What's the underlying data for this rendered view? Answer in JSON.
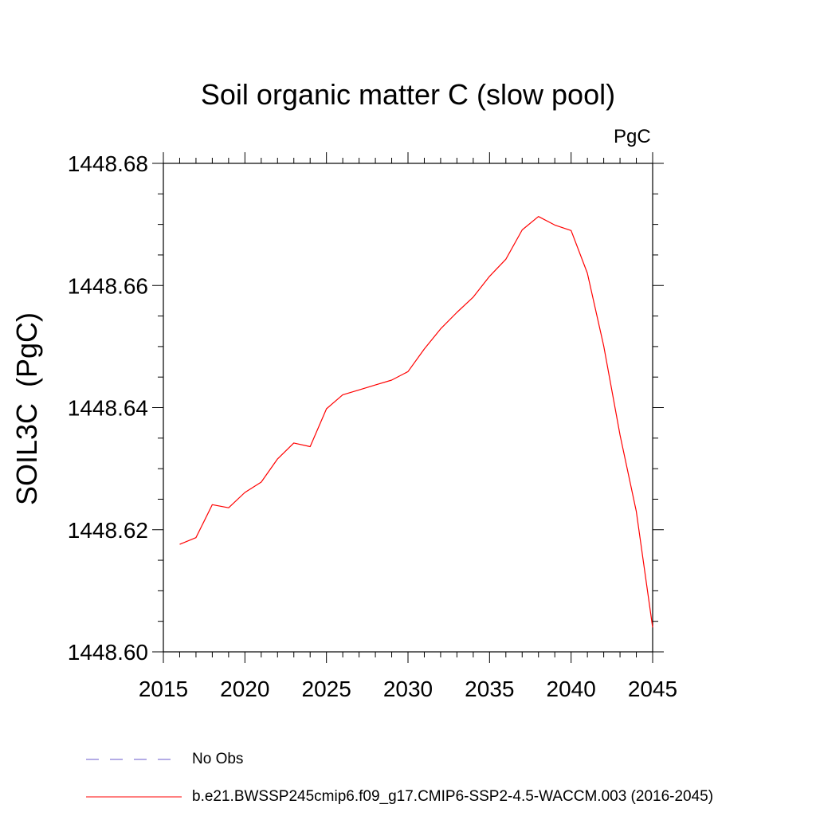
{
  "chart_data": {
    "type": "line",
    "title": "Soil organic matter C (slow pool)",
    "units_label": "PgC",
    "ylabel": "SOIL3C  (PgC)",
    "xlabel": "",
    "xlim": [
      2015,
      2045
    ],
    "ylim": [
      1448.6,
      1448.68
    ],
    "x_ticks": [
      "2015",
      "2020",
      "2025",
      "2030",
      "2035",
      "2040",
      "2045"
    ],
    "y_ticks": [
      "1448.60",
      "1448.62",
      "1448.64",
      "1448.66",
      "1448.68"
    ],
    "grid": false,
    "legend_position": "bottom",
    "series": [
      {
        "name": "b.e21.BWSSP245cmip6.f09_g17.CMIP6-SSP2-4.5-WACCM.003 (2016-2045)",
        "color": "#ff0000",
        "style": "solid",
        "x": [
          2016,
          2017,
          2018,
          2019,
          2020,
          2021,
          2022,
          2023,
          2024,
          2025,
          2026,
          2027,
          2028,
          2029,
          2030,
          2031,
          2032,
          2033,
          2034,
          2035,
          2036,
          2037,
          2038,
          2039,
          2040,
          2041,
          2042,
          2043,
          2044,
          2045
        ],
        "y": [
          1448.6176,
          1448.6187,
          1448.6241,
          1448.6236,
          1448.6261,
          1448.6278,
          1448.6316,
          1448.6342,
          1448.6336,
          1448.6398,
          1448.6421,
          1448.6429,
          1448.6437,
          1448.6445,
          1448.6459,
          1448.6496,
          1448.6529,
          1448.6556,
          1448.6581,
          1448.6615,
          1448.6643,
          1448.6691,
          1448.6713,
          1448.6699,
          1448.669,
          1448.662,
          1448.6501,
          1448.6355,
          1448.623,
          1448.604
        ]
      },
      {
        "name": "No Obs",
        "color": "#6a5acd",
        "style": "dashed",
        "x": [],
        "y": []
      }
    ]
  }
}
